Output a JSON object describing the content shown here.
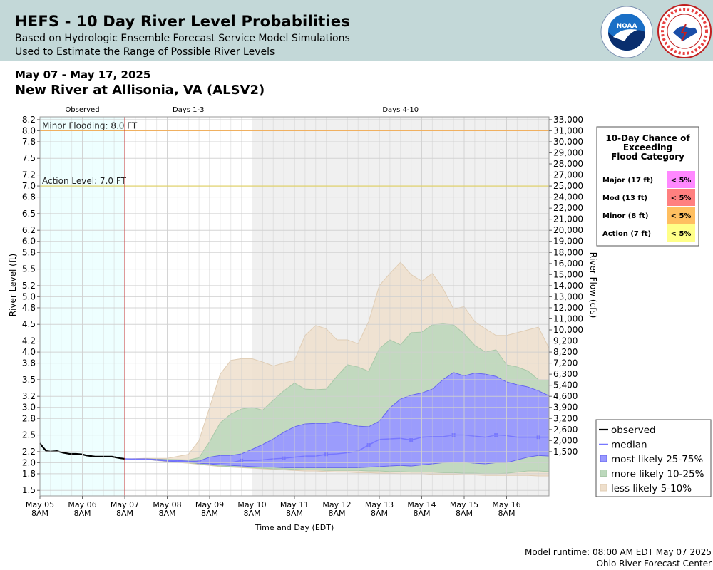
{
  "header": {
    "title": "HEFS - 10 Day River Level Probabilities",
    "subtitle1": "Based on Hydrologic Ensemble Forecast Service Model Simulations",
    "subtitle2": "Used to Estimate the Range of Possible River Levels",
    "date_range": "May 07 - May 17, 2025",
    "station": "New River at Allisonia, VA (ALSV2)"
  },
  "footer": {
    "runtime": "Model runtime: 08:00 AM EDT May 07 2025",
    "center": "Ohio River Forecast Center"
  },
  "colors": {
    "observed": "#000000",
    "median": "#7777ff",
    "band_25_75": "#9999ff",
    "band_10_25": "#bcd8bc",
    "band_5_10": "#eedfcc",
    "minor_line": "#f0b060",
    "action_line": "#e0d060",
    "now_line": "#cc3333",
    "observed_shade": "#eeffff",
    "days4_10_shade": "#f0f0f0"
  },
  "flood_table": {
    "title": "10-Day Chance of Exceeding Flood Category",
    "rows": [
      {
        "label": "Major (17 ft)",
        "value": "< 5%",
        "color": "#ff88ff"
      },
      {
        "label": "Mod (13 ft)",
        "value": "< 5%",
        "color": "#ff8080"
      },
      {
        "label": "Minor (8 ft)",
        "value": "< 5%",
        "color": "#ffbf60"
      },
      {
        "label": "Action (7 ft)",
        "value": "< 5%",
        "color": "#ffff88"
      }
    ]
  },
  "chart_data": {
    "type": "area",
    "ylabel": "River Level (ft)",
    "ylabel_right": "River Flow (cfs)",
    "xlabel": "Time and Day (EDT)",
    "ylim": [
      1.4,
      8.25
    ],
    "xlim": [
      0,
      12
    ],
    "x_unit": "days after May 05 8AM",
    "y_ticks": [
      "8.2",
      "8.0",
      "7.8",
      "7.5",
      "7.2",
      "7.0",
      "6.8",
      "6.5",
      "6.2",
      "6.0",
      "5.8",
      "5.5",
      "5.2",
      "5.0",
      "4.8",
      "4.5",
      "4.2",
      "4.0",
      "3.8",
      "3.5",
      "3.2",
      "3.0",
      "2.8",
      "2.5",
      "2.2",
      "2.0",
      "1.8",
      "1.5"
    ],
    "y_tick_values": [
      8.2,
      8.0,
      7.8,
      7.5,
      7.2,
      7.0,
      6.8,
      6.5,
      6.2,
      6.0,
      5.8,
      5.5,
      5.2,
      5.0,
      4.8,
      4.5,
      4.2,
      4.0,
      3.8,
      3.5,
      3.2,
      3.0,
      2.8,
      2.5,
      2.2,
      2.0,
      1.8,
      1.5
    ],
    "y2_ticks": [
      "33,000",
      "31,000",
      "30,000",
      "29,000",
      "28,000",
      "27,000",
      "25,000",
      "24,000",
      "22,000",
      "21,000",
      "20,000",
      "19,000",
      "18,000",
      "16,000",
      "15,000",
      "14,000",
      "13,000",
      "12,000",
      "11,000",
      "10,000",
      "9,200",
      "8,200",
      "7,200",
      "6,300",
      "5,400",
      "4,600",
      "3,900",
      "3,200",
      "2,600",
      "2,000",
      "1,500"
    ],
    "y2_tick_values": [
      8.2,
      8.0,
      7.8,
      7.6,
      7.4,
      7.2,
      7.0,
      6.8,
      6.6,
      6.4,
      6.2,
      6.0,
      5.8,
      5.6,
      5.4,
      5.2,
      5.0,
      4.8,
      4.6,
      4.4,
      4.2,
      4.0,
      3.8,
      3.6,
      3.4,
      3.2,
      3.0,
      2.8,
      2.6,
      2.4,
      2.2
    ],
    "x_ticks": [
      {
        "x": 0,
        "day": "May 05",
        "time": "8AM"
      },
      {
        "x": 1,
        "day": "May 06",
        "time": "8AM"
      },
      {
        "x": 2,
        "day": "May 07",
        "time": "8AM"
      },
      {
        "x": 3,
        "day": "May 08",
        "time": "8AM"
      },
      {
        "x": 4,
        "day": "May 09",
        "time": "8AM"
      },
      {
        "x": 5,
        "day": "May 10",
        "time": "8AM"
      },
      {
        "x": 6,
        "day": "May 11",
        "time": "8AM"
      },
      {
        "x": 7,
        "day": "May 12",
        "time": "8AM"
      },
      {
        "x": 8,
        "day": "May 13",
        "time": "8AM"
      },
      {
        "x": 9,
        "day": "May 14",
        "time": "8AM"
      },
      {
        "x": 10,
        "day": "May 15",
        "time": "8AM"
      },
      {
        "x": 11,
        "day": "May 16",
        "time": "8AM"
      }
    ],
    "regions": [
      {
        "label": "Observed",
        "x0": 0,
        "x1": 2
      },
      {
        "label": "Days 1-3",
        "x0": 2,
        "x1": 5
      },
      {
        "label": "Days 4-10",
        "x0": 5,
        "x1": 12
      }
    ],
    "thresholds": [
      {
        "label": "Minor Flooding: 8.0 FT",
        "value": 8.0
      },
      {
        "label": "Action Level: 7.0 FT",
        "value": 7.0
      }
    ],
    "legend": [
      "observed",
      "median",
      "most likely 25-75%",
      "more likely 10-25%",
      "less likely 5-10%"
    ],
    "observed": {
      "x": [
        0,
        0.07,
        0.15,
        0.25,
        0.4,
        0.55,
        0.7,
        0.85,
        1.0,
        1.1,
        1.3,
        1.5,
        1.7,
        1.9,
        2.0
      ],
      "y": [
        2.35,
        2.28,
        2.21,
        2.2,
        2.21,
        2.18,
        2.16,
        2.16,
        2.15,
        2.13,
        2.11,
        2.11,
        2.11,
        2.08,
        2.07
      ]
    },
    "forecast_x": [
      2.0,
      2.5,
      3.0,
      3.5,
      3.75,
      4.0,
      4.25,
      4.5,
      4.75,
      5.0,
      5.25,
      5.5,
      5.75,
      6.0,
      6.25,
      6.5,
      6.75,
      7.0,
      7.25,
      7.5,
      7.75,
      8.0,
      8.25,
      8.5,
      8.75,
      9.0,
      9.25,
      9.5,
      9.75,
      10.0,
      10.25,
      10.5,
      10.75,
      11.0,
      11.25,
      11.5,
      11.75,
      12.0
    ],
    "median": [
      2.07,
      2.06,
      2.04,
      2.02,
      2.01,
      1.99,
      1.99,
      2.0,
      2.04,
      2.04,
      2.05,
      2.07,
      2.08,
      2.1,
      2.12,
      2.12,
      2.15,
      2.16,
      2.18,
      2.21,
      2.32,
      2.42,
      2.43,
      2.44,
      2.41,
      2.46,
      2.47,
      2.47,
      2.5,
      2.5,
      2.48,
      2.46,
      2.5,
      2.49,
      2.46,
      2.46,
      2.46,
      2.46
    ],
    "p25": [
      2.07,
      2.06,
      2.03,
      2.01,
      1.99,
      1.98,
      1.96,
      1.95,
      1.94,
      1.93,
      1.92,
      1.92,
      1.91,
      1.91,
      1.91,
      1.91,
      1.91,
      1.91,
      1.91,
      1.91,
      1.92,
      1.93,
      1.94,
      1.95,
      1.94,
      1.96,
      1.98,
      2.0,
      2.01,
      2.01,
      1.99,
      1.98,
      2.0,
      2.0,
      2.05,
      2.1,
      2.13,
      2.12
    ],
    "p75": [
      2.07,
      2.07,
      2.05,
      2.03,
      2.03,
      2.1,
      2.13,
      2.13,
      2.16,
      2.24,
      2.33,
      2.43,
      2.55,
      2.65,
      2.7,
      2.71,
      2.71,
      2.74,
      2.7,
      2.66,
      2.65,
      2.75,
      2.99,
      3.15,
      3.22,
      3.26,
      3.33,
      3.5,
      3.63,
      3.57,
      3.62,
      3.6,
      3.56,
      3.46,
      3.41,
      3.37,
      3.3,
      3.21
    ],
    "p10": [
      2.07,
      2.06,
      2.03,
      2.0,
      1.98,
      1.96,
      1.94,
      1.93,
      1.92,
      1.91,
      1.9,
      1.89,
      1.89,
      1.88,
      1.87,
      1.87,
      1.86,
      1.86,
      1.86,
      1.86,
      1.85,
      1.85,
      1.84,
      1.84,
      1.83,
      1.83,
      1.83,
      1.82,
      1.82,
      1.81,
      1.81,
      1.8,
      1.8,
      1.81,
      1.83,
      1.85,
      1.85,
      1.84
    ],
    "p90": [
      2.07,
      2.07,
      2.06,
      2.05,
      2.09,
      2.38,
      2.72,
      2.88,
      2.97,
      3.0,
      2.95,
      3.13,
      3.3,
      3.44,
      3.33,
      3.32,
      3.33,
      3.56,
      3.77,
      3.73,
      3.65,
      4.06,
      4.22,
      4.13,
      4.35,
      4.36,
      4.49,
      4.51,
      4.49,
      4.33,
      4.12,
      4.0,
      4.04,
      3.77,
      3.73,
      3.66,
      3.5,
      3.49
    ],
    "p05": [
      2.07,
      2.06,
      2.02,
      1.99,
      1.97,
      1.95,
      1.93,
      1.92,
      1.91,
      1.9,
      1.89,
      1.88,
      1.87,
      1.86,
      1.85,
      1.85,
      1.84,
      1.83,
      1.83,
      1.82,
      1.82,
      1.81,
      1.81,
      1.8,
      1.8,
      1.8,
      1.79,
      1.79,
      1.79,
      1.78,
      1.78,
      1.77,
      1.77,
      1.77,
      1.77,
      1.77,
      1.76,
      1.76
    ],
    "p95": [
      2.07,
      2.08,
      2.08,
      2.15,
      2.4,
      3.0,
      3.6,
      3.85,
      3.88,
      3.88,
      3.82,
      3.75,
      3.8,
      3.85,
      4.3,
      4.48,
      4.42,
      4.22,
      4.22,
      4.15,
      4.55,
      5.2,
      5.42,
      5.62,
      5.4,
      5.28,
      5.42,
      5.15,
      4.78,
      4.82,
      4.55,
      4.42,
      4.3,
      4.3,
      4.35,
      4.4,
      4.45,
      4.07
    ]
  }
}
